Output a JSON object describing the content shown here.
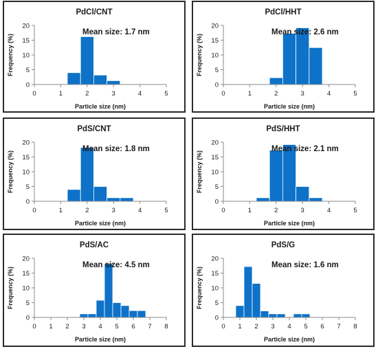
{
  "chart_data": [
    {
      "type": "bar",
      "title": "PdCl/CNT",
      "annotation": "Mean size: 1.7 nm",
      "xlabel": "Particle size (nm)",
      "ylabel": "Frequency (%)",
      "xlim": [
        0,
        5
      ],
      "ylim": [
        0,
        20
      ],
      "xticks": [
        "0",
        "1",
        "2",
        "3",
        "4",
        "5"
      ],
      "yticks": [
        "0",
        "5",
        "10",
        "15",
        "20"
      ],
      "bin_width": 0.5,
      "bins": [
        {
          "x": 1.5,
          "y": 4
        },
        {
          "x": 2.0,
          "y": 16.2
        },
        {
          "x": 2.5,
          "y": 3.2
        },
        {
          "x": 3.0,
          "y": 1.3
        }
      ]
    },
    {
      "type": "bar",
      "title": "PdCl/HHT",
      "annotation": "Mean size: 2.6 nm",
      "xlabel": "Particle size (nm)",
      "ylabel": "Frequency (%)",
      "xlim": [
        0,
        5
      ],
      "ylim": [
        0,
        20
      ],
      "xticks": [
        "0",
        "1",
        "2",
        "3",
        "4",
        "5"
      ],
      "yticks": [
        "0",
        "5",
        "10",
        "15",
        "20"
      ],
      "bin_width": 0.5,
      "bins": [
        {
          "x": 2.0,
          "y": 2.3
        },
        {
          "x": 2.5,
          "y": 17.3
        },
        {
          "x": 3.0,
          "y": 19.2
        },
        {
          "x": 3.5,
          "y": 12.5
        }
      ]
    },
    {
      "type": "bar",
      "title": "PdS/CNT",
      "annotation": "Mean size: 1.8 nm",
      "xlabel": "Particle size (nm)",
      "ylabel": "Frequency (%)",
      "xlim": [
        0,
        5
      ],
      "ylim": [
        0,
        20
      ],
      "xticks": [
        "0",
        "1",
        "2",
        "3",
        "4",
        "5"
      ],
      "yticks": [
        "0",
        "5",
        "10",
        "15",
        "20"
      ],
      "bin_width": 0.5,
      "bins": [
        {
          "x": 1.5,
          "y": 4
        },
        {
          "x": 2.0,
          "y": 18.2
        },
        {
          "x": 2.5,
          "y": 5
        },
        {
          "x": 3.0,
          "y": 1.2
        },
        {
          "x": 3.5,
          "y": 1.2
        }
      ]
    },
    {
      "type": "bar",
      "title": "PdS/HHT",
      "annotation": "Mean size: 2.1 nm",
      "xlabel": "Particle size (nm)",
      "ylabel": "Frequency (%)",
      "xlim": [
        0,
        5
      ],
      "ylim": [
        0,
        20
      ],
      "xticks": [
        "0",
        "1",
        "2",
        "3",
        "4",
        "5"
      ],
      "yticks": [
        "0",
        "5",
        "10",
        "15",
        "20"
      ],
      "bin_width": 0.5,
      "bins": [
        {
          "x": 1.5,
          "y": 1.2
        },
        {
          "x": 2.0,
          "y": 17.3
        },
        {
          "x": 2.5,
          "y": 19.2
        },
        {
          "x": 3.0,
          "y": 5
        },
        {
          "x": 3.5,
          "y": 1.2
        }
      ]
    },
    {
      "type": "bar",
      "title": "PdS/AC",
      "annotation": "Mean size: 4.5 nm",
      "xlabel": "Particle size (nm)",
      "ylabel": "Frequency (%)",
      "xlim": [
        0,
        8
      ],
      "ylim": [
        0,
        20
      ],
      "xticks": [
        "0",
        "1",
        "2",
        "3",
        "4",
        "5",
        "6",
        "7",
        "8"
      ],
      "yticks": [
        "0",
        "5",
        "10",
        "15",
        "20"
      ],
      "bin_width": 0.5,
      "bins": [
        {
          "x": 3.0,
          "y": 1.2
        },
        {
          "x": 3.5,
          "y": 1.2
        },
        {
          "x": 4.0,
          "y": 5.8
        },
        {
          "x": 4.5,
          "y": 18.2
        },
        {
          "x": 5.0,
          "y": 5
        },
        {
          "x": 5.5,
          "y": 4
        },
        {
          "x": 6.0,
          "y": 2.3
        },
        {
          "x": 6.5,
          "y": 2.3
        }
      ]
    },
    {
      "type": "bar",
      "title": "PdS/G",
      "annotation": "Mean size: 1.6 nm",
      "xlabel": "Particle size (nm)",
      "ylabel": "Frequency (%)",
      "xlim": [
        0,
        8
      ],
      "ylim": [
        0,
        20
      ],
      "xticks": [
        "0",
        "1",
        "2",
        "3",
        "4",
        "5",
        "6",
        "7",
        "8"
      ],
      "yticks": [
        "0",
        "5",
        "10",
        "15",
        "20"
      ],
      "bin_width": 0.5,
      "bins": [
        {
          "x": 1.0,
          "y": 4
        },
        {
          "x": 1.5,
          "y": 17.2
        },
        {
          "x": 2.0,
          "y": 11.5
        },
        {
          "x": 2.5,
          "y": 2.2
        },
        {
          "x": 3.0,
          "y": 1.2
        },
        {
          "x": 3.5,
          "y": 1.2
        },
        {
          "x": 4.5,
          "y": 1.2
        },
        {
          "x": 5.0,
          "y": 1.2
        }
      ]
    }
  ],
  "colors": {
    "bar_fill": "#0d72c8",
    "bar_edge": "#ffffff",
    "axis": "#8a8a8a",
    "panel_border": "#2b2b2b",
    "text": "#1a1a1a"
  }
}
